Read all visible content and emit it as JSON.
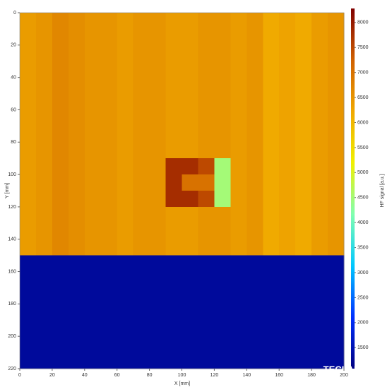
{
  "chart_data": {
    "type": "heatmap",
    "xlabel": "X [mm]",
    "ylabel": "Y [mm]",
    "xlim": [
      0,
      200
    ],
    "xticks": [
      0,
      20,
      40,
      60,
      80,
      100,
      120,
      140,
      160,
      180,
      200
    ],
    "ylim": [
      0,
      220
    ],
    "yticks": [
      0,
      20,
      40,
      60,
      80,
      100,
      120,
      140,
      160,
      180,
      200,
      220
    ],
    "y_inverted": true,
    "x": [
      0,
      10,
      20,
      30,
      40,
      50,
      60,
      70,
      80,
      90,
      100,
      110,
      120,
      130,
      140,
      150,
      160,
      170,
      180,
      190,
      200
    ],
    "y": [
      0,
      10,
      20,
      30,
      40,
      50,
      60,
      70,
      80,
      90,
      100,
      110,
      120,
      130,
      140,
      150,
      160,
      170,
      180,
      190,
      200,
      210,
      220
    ],
    "z": [
      [
        6400,
        6500,
        6700,
        6600,
        6500,
        6500,
        6400,
        6500,
        6500,
        6400,
        6400,
        6500,
        6500,
        6400,
        6500,
        6200,
        6300,
        6200,
        6400,
        6500
      ],
      [
        6400,
        6500,
        6700,
        6600,
        6500,
        6500,
        6400,
        6500,
        6500,
        6400,
        6400,
        6500,
        6500,
        6400,
        6500,
        6200,
        6300,
        6200,
        6400,
        6500
      ],
      [
        6400,
        6500,
        6700,
        6600,
        6500,
        6500,
        6400,
        6500,
        6500,
        6400,
        6400,
        6500,
        6500,
        6400,
        6500,
        6200,
        6300,
        6200,
        6400,
        6500
      ],
      [
        6400,
        6500,
        6700,
        6600,
        6500,
        6500,
        6400,
        6500,
        6500,
        6400,
        6400,
        6500,
        6500,
        6400,
        6500,
        6200,
        6300,
        6200,
        6400,
        6500
      ],
      [
        6400,
        6500,
        6700,
        6600,
        6500,
        6500,
        6400,
        6500,
        6500,
        6400,
        6400,
        6500,
        6500,
        6400,
        6500,
        6200,
        6300,
        6200,
        6400,
        6500
      ],
      [
        6400,
        6500,
        6700,
        6600,
        6500,
        6500,
        6400,
        6500,
        6500,
        6400,
        6400,
        6500,
        6500,
        6400,
        6500,
        6200,
        6300,
        6200,
        6400,
        6500
      ],
      [
        6400,
        6500,
        6700,
        6600,
        6500,
        6500,
        6400,
        6500,
        6500,
        6400,
        6400,
        6500,
        6500,
        6400,
        6500,
        6200,
        6300,
        6200,
        6400,
        6500
      ],
      [
        6400,
        6500,
        6700,
        6600,
        6500,
        6500,
        6400,
        6500,
        6500,
        6400,
        6400,
        6500,
        6500,
        6400,
        6500,
        6200,
        6300,
        6200,
        6400,
        6500
      ],
      [
        6400,
        6500,
        6700,
        6600,
        6500,
        6500,
        6400,
        6500,
        6500,
        6400,
        6400,
        6500,
        6500,
        6400,
        6500,
        6200,
        6300,
        6200,
        6400,
        6500
      ],
      [
        6400,
        6500,
        6700,
        6600,
        6500,
        6500,
        6400,
        6500,
        6500,
        7800,
        7800,
        7500,
        4500,
        6400,
        6500,
        6200,
        6300,
        6200,
        6400,
        6500
      ],
      [
        6400,
        6500,
        6700,
        6600,
        6500,
        6500,
        6400,
        6500,
        6500,
        7800,
        7000,
        7000,
        4500,
        6400,
        6500,
        6200,
        6300,
        6200,
        6400,
        6500
      ],
      [
        6400,
        6500,
        6700,
        6600,
        6500,
        6500,
        6400,
        6500,
        6500,
        7800,
        7800,
        7500,
        4500,
        6400,
        6500,
        6200,
        6300,
        6200,
        6400,
        6500
      ],
      [
        6400,
        6500,
        6700,
        6600,
        6500,
        6500,
        6400,
        6500,
        6500,
        6400,
        6400,
        6500,
        6500,
        6400,
        6500,
        6200,
        6300,
        6200,
        6400,
        6500
      ],
      [
        6400,
        6500,
        6700,
        6600,
        6500,
        6500,
        6400,
        6500,
        6500,
        6400,
        6400,
        6500,
        6500,
        6400,
        6500,
        6200,
        6300,
        6200,
        6400,
        6500
      ],
      [
        6400,
        6500,
        6700,
        6600,
        6500,
        6500,
        6400,
        6500,
        6500,
        6400,
        6400,
        6500,
        6500,
        6400,
        6500,
        6200,
        6300,
        6200,
        6400,
        6500
      ],
      [
        1300,
        1300,
        1300,
        1300,
        1300,
        1300,
        1300,
        1300,
        1300,
        1300,
        1300,
        1300,
        1300,
        1300,
        1300,
        1300,
        1300,
        1300,
        1300,
        1300
      ],
      [
        1300,
        1300,
        1300,
        1300,
        1300,
        1300,
        1300,
        1300,
        1300,
        1300,
        1300,
        1300,
        1300,
        1300,
        1300,
        1300,
        1300,
        1300,
        1300,
        1300
      ],
      [
        1300,
        1300,
        1300,
        1300,
        1300,
        1300,
        1300,
        1300,
        1300,
        1300,
        1300,
        1300,
        1300,
        1300,
        1300,
        1300,
        1300,
        1300,
        1300,
        1300
      ],
      [
        1300,
        1300,
        1300,
        1300,
        1300,
        1300,
        1300,
        1300,
        1300,
        1300,
        1300,
        1300,
        1300,
        1300,
        1300,
        1300,
        1300,
        1300,
        1300,
        1300
      ],
      [
        1300,
        1300,
        1300,
        1300,
        1300,
        1300,
        1300,
        1300,
        1300,
        1300,
        1300,
        1300,
        1300,
        1300,
        1300,
        1300,
        1300,
        1300,
        1300,
        1300
      ],
      [
        1300,
        1300,
        1300,
        1300,
        1300,
        1300,
        1300,
        1300,
        1300,
        1300,
        1300,
        1300,
        1300,
        1300,
        1300,
        1300,
        1300,
        1300,
        1300,
        1300
      ],
      [
        1300,
        1300,
        1300,
        1300,
        1300,
        1300,
        1300,
        1300,
        1300,
        1300,
        1300,
        1300,
        1300,
        1300,
        1300,
        1300,
        1300,
        1300,
        1300,
        1300
      ]
    ],
    "colorbar": {
      "label": "HF signal [a.u.]",
      "zlim": [
        1080,
        8280
      ],
      "ticks": [
        1500,
        2000,
        2500,
        3000,
        3500,
        4000,
        4500,
        5000,
        5500,
        6000,
        6500,
        7000,
        7500,
        8000
      ],
      "colors": [
        "#000080",
        "#0030ff",
        "#00c8ff",
        "#80ffb0",
        "#f0f000",
        "#f0a800",
        "#d06000",
        "#800000"
      ]
    },
    "watermark": "TECLAB"
  }
}
